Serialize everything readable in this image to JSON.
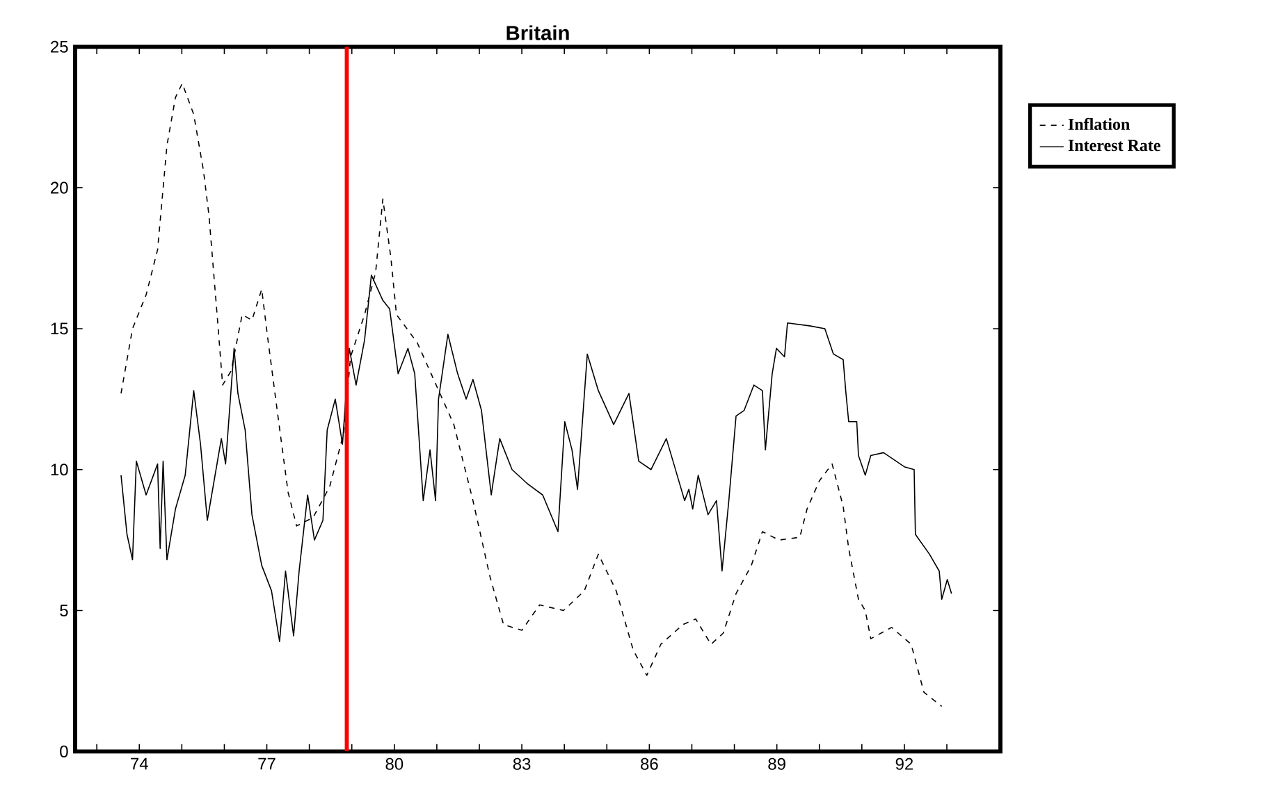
{
  "chart_data": {
    "type": "line",
    "title": "Britain",
    "xlim": [
      72.49,
      94.26
    ],
    "ylim": [
      0,
      25
    ],
    "xticks": [
      {
        "value": 73,
        "label": null
      },
      74,
      {
        "value": 75,
        "label": null
      },
      {
        "value": 76,
        "label": null
      },
      77,
      {
        "value": 78,
        "label": null
      },
      {
        "value": 79,
        "label": null
      },
      80,
      {
        "value": 81,
        "label": null
      },
      {
        "value": 82,
        "label": null
      },
      83,
      {
        "value": 84,
        "label": null
      },
      {
        "value": 85,
        "label": null
      },
      86,
      {
        "value": 87,
        "label": null
      },
      {
        "value": 88,
        "label": null
      },
      89,
      {
        "value": 90,
        "label": null
      },
      {
        "value": 91,
        "label": null
      },
      92,
      {
        "value": 93,
        "label": null
      }
    ],
    "yticks": [
      0,
      5,
      10,
      15,
      20,
      25
    ],
    "grid": false,
    "legend": "right",
    "ref_lines": [
      {
        "axis": "x",
        "value": 78.88,
        "color": "#ff0000"
      }
    ],
    "series": [
      {
        "name": "Inflation",
        "color": "#000000",
        "line_style": "dashed",
        "x": [
          73.57,
          73.84,
          74.16,
          74.43,
          74.65,
          74.85,
          75.01,
          75.28,
          75.51,
          75.64,
          75.83,
          75.96,
          76.16,
          76.42,
          76.65,
          76.88,
          77.01,
          77.27,
          77.5,
          77.7,
          78.09,
          78.48,
          78.81,
          78.97,
          79.3,
          79.56,
          79.73,
          79.92,
          80.05,
          80.54,
          81.4,
          81.85,
          82.25,
          82.57,
          83.0,
          83.42,
          83.98,
          84.47,
          84.8,
          85.22,
          85.62,
          85.94,
          86.27,
          86.79,
          87.09,
          87.45,
          87.74,
          88.04,
          88.4,
          88.66,
          89.05,
          89.54,
          89.71,
          90.0,
          90.3,
          90.56,
          90.69,
          90.92,
          91.08,
          91.21,
          91.7,
          92.16,
          92.46,
          92.88
        ],
        "values": [
          12.7,
          15.0,
          16.2,
          17.8,
          21.5,
          23.2,
          23.7,
          22.6,
          20.6,
          19.0,
          15.5,
          13.0,
          13.5,
          15.5,
          15.3,
          16.4,
          14.8,
          11.8,
          9.2,
          8.0,
          8.3,
          9.4,
          11.3,
          14.0,
          15.5,
          17.0,
          19.6,
          17.5,
          15.5,
          14.5,
          11.6,
          8.9,
          6.2,
          4.5,
          4.3,
          5.2,
          5.0,
          5.7,
          7.0,
          5.7,
          3.6,
          2.7,
          3.8,
          4.5,
          4.7,
          3.8,
          4.2,
          5.6,
          6.6,
          7.8,
          7.5,
          7.6,
          8.6,
          9.6,
          10.2,
          8.7,
          7.2,
          5.4,
          5.0,
          4.0,
          4.4,
          3.8,
          2.1,
          1.6
        ]
      },
      {
        "name": "Interest Rate",
        "color": "#000000",
        "line_style": "solid",
        "x": [
          73.57,
          73.71,
          73.84,
          73.93,
          74.16,
          74.43,
          74.49,
          74.56,
          74.65,
          74.85,
          75.08,
          75.28,
          75.44,
          75.6,
          75.93,
          76.03,
          76.23,
          76.32,
          76.49,
          76.65,
          76.88,
          77.11,
          77.3,
          77.44,
          77.63,
          77.76,
          77.96,
          78.12,
          78.32,
          78.42,
          78.61,
          78.78,
          78.94,
          79.1,
          79.3,
          79.46,
          79.73,
          79.89,
          80.09,
          80.32,
          80.48,
          80.68,
          80.84,
          80.97,
          81.04,
          81.26,
          81.49,
          81.69,
          81.85,
          82.05,
          82.28,
          82.48,
          82.77,
          83.13,
          83.49,
          83.85,
          84.01,
          84.18,
          84.31,
          84.54,
          84.8,
          85.16,
          85.52,
          85.75,
          86.04,
          86.4,
          86.83,
          86.93,
          87.02,
          87.15,
          87.38,
          87.58,
          87.71,
          87.87,
          88.04,
          88.23,
          88.46,
          88.66,
          88.73,
          88.89,
          88.99,
          89.18,
          89.25,
          89.77,
          90.13,
          90.33,
          90.56,
          90.62,
          90.69,
          90.88,
          90.92,
          91.08,
          91.21,
          91.51,
          92.0,
          92.23,
          92.26,
          92.59,
          92.82,
          92.88,
          93.01,
          93.11
        ],
        "values": [
          9.8,
          7.7,
          6.8,
          10.3,
          9.1,
          10.2,
          7.2,
          10.3,
          6.8,
          8.6,
          9.8,
          12.8,
          10.9,
          8.2,
          11.1,
          10.2,
          14.3,
          12.7,
          11.4,
          8.4,
          6.6,
          5.7,
          3.9,
          6.4,
          4.1,
          6.4,
          9.1,
          7.5,
          8.2,
          11.4,
          12.5,
          10.9,
          14.3,
          13.0,
          14.6,
          16.9,
          16.0,
          15.7,
          13.4,
          14.3,
          13.4,
          8.9,
          10.7,
          8.9,
          12.5,
          14.8,
          13.4,
          12.5,
          13.2,
          12.1,
          9.1,
          11.1,
          10.0,
          9.5,
          9.1,
          7.8,
          11.7,
          10.7,
          9.3,
          14.1,
          12.8,
          11.6,
          12.7,
          10.3,
          10.0,
          11.1,
          8.9,
          9.3,
          8.6,
          9.8,
          8.4,
          8.9,
          6.4,
          8.9,
          11.9,
          12.1,
          13.0,
          12.8,
          10.7,
          13.4,
          14.3,
          14.0,
          15.2,
          15.1,
          15.0,
          14.1,
          13.9,
          12.8,
          11.7,
          11.7,
          10.5,
          9.8,
          10.5,
          10.6,
          10.1,
          10.0,
          7.7,
          7.0,
          6.4,
          5.4,
          6.1,
          5.6
        ]
      }
    ]
  }
}
